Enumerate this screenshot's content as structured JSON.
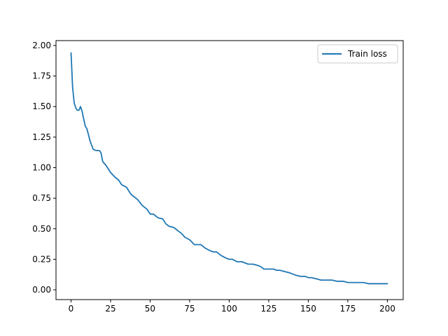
{
  "chart_data": {
    "type": "line",
    "title": "",
    "xlabel": "",
    "ylabel": "",
    "xlim": [
      -9.5,
      210
    ],
    "ylim": [
      -0.08,
      2.04
    ],
    "xticks": [
      0,
      25,
      50,
      75,
      100,
      125,
      150,
      175,
      200
    ],
    "xtick_labels": [
      "0",
      "25",
      "50",
      "75",
      "100",
      "125",
      "150",
      "175",
      "200"
    ],
    "yticks": [
      0.0,
      0.25,
      0.5,
      0.75,
      1.0,
      1.25,
      1.5,
      1.75,
      2.0
    ],
    "ytick_labels": [
      "0.00",
      "0.25",
      "0.50",
      "0.75",
      "1.00",
      "1.25",
      "1.50",
      "1.75",
      "2.00"
    ],
    "grid": false,
    "legend_position": "top-right",
    "series": [
      {
        "name": "Train loss",
        "color": "#1f77b4",
        "x": [
          0,
          1,
          2,
          3,
          4,
          5,
          6,
          7,
          8,
          9,
          10,
          12,
          14,
          16,
          18,
          19,
          20,
          22,
          25,
          28,
          30,
          32,
          35,
          38,
          40,
          42,
          45,
          48,
          50,
          52,
          55,
          58,
          60,
          62,
          65,
          68,
          70,
          72,
          75,
          78,
          80,
          82,
          85,
          88,
          90,
          92,
          95,
          98,
          100,
          102,
          105,
          108,
          110,
          112,
          115,
          118,
          120,
          122,
          125,
          128,
          130,
          132,
          135,
          138,
          140,
          142,
          145,
          148,
          150,
          152,
          155,
          158,
          160,
          162,
          165,
          168,
          170,
          172,
          175,
          178,
          180,
          182,
          185,
          188,
          190,
          192,
          195,
          198,
          200
        ],
        "y": [
          1.94,
          1.66,
          1.53,
          1.49,
          1.47,
          1.47,
          1.5,
          1.46,
          1.4,
          1.34,
          1.32,
          1.22,
          1.15,
          1.14,
          1.14,
          1.12,
          1.05,
          1.02,
          0.96,
          0.92,
          0.9,
          0.86,
          0.84,
          0.78,
          0.76,
          0.74,
          0.69,
          0.66,
          0.62,
          0.62,
          0.59,
          0.58,
          0.54,
          0.52,
          0.51,
          0.48,
          0.46,
          0.43,
          0.41,
          0.37,
          0.37,
          0.37,
          0.34,
          0.32,
          0.31,
          0.31,
          0.28,
          0.26,
          0.25,
          0.25,
          0.23,
          0.23,
          0.22,
          0.21,
          0.21,
          0.2,
          0.19,
          0.17,
          0.17,
          0.17,
          0.16,
          0.16,
          0.15,
          0.14,
          0.13,
          0.12,
          0.11,
          0.11,
          0.1,
          0.1,
          0.09,
          0.08,
          0.08,
          0.08,
          0.08,
          0.07,
          0.07,
          0.07,
          0.06,
          0.06,
          0.06,
          0.06,
          0.06,
          0.05,
          0.05,
          0.05,
          0.05,
          0.05,
          0.05
        ]
      }
    ]
  }
}
